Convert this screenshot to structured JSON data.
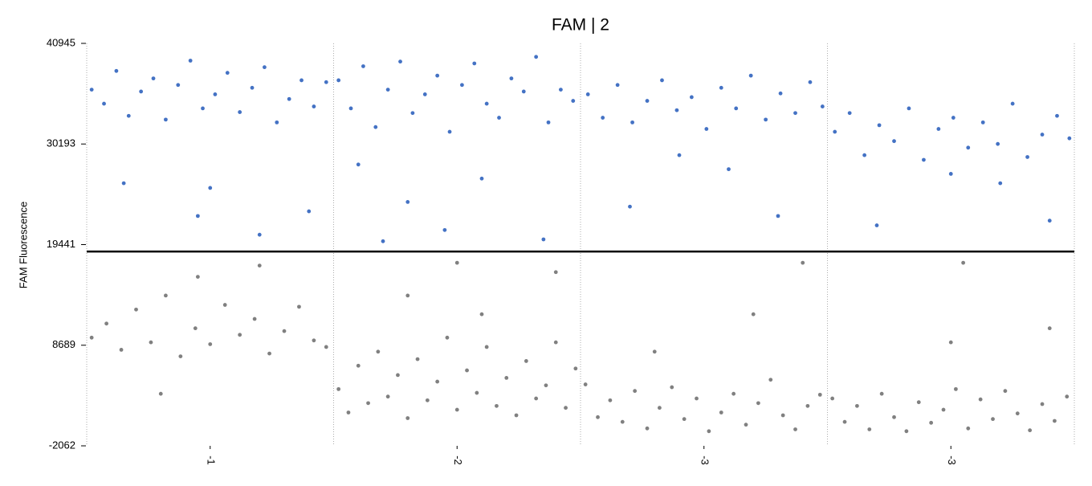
{
  "chart_data": {
    "type": "scatter",
    "title": "FAM | 2",
    "ylabel": "FAM Fluorescence",
    "xlim": [
      0,
      4
    ],
    "ylim": [
      -2062,
      40945
    ],
    "xticks": [
      {
        "value": 0.5,
        "label": "-1"
      },
      {
        "value": 1.5,
        "label": "-2"
      },
      {
        "value": 2.5,
        "label": "-3"
      },
      {
        "value": 3.5,
        "label": "-3"
      }
    ],
    "yticks": [
      -2062,
      8689,
      19441,
      30193,
      40945
    ],
    "threshold": 18700,
    "series": [
      {
        "color": "#4472c4",
        "x": [
          0.02,
          0.07,
          0.12,
          0.17,
          0.22,
          0.27,
          0.32,
          0.37,
          0.42,
          0.47,
          0.52,
          0.57,
          0.62,
          0.67,
          0.72,
          0.77,
          0.82,
          0.87,
          0.92,
          0.97,
          0.15,
          0.5,
          0.7,
          0.45,
          0.9,
          1.02,
          1.07,
          1.12,
          1.17,
          1.22,
          1.27,
          1.32,
          1.37,
          1.42,
          1.47,
          1.52,
          1.57,
          1.62,
          1.67,
          1.72,
          1.77,
          1.82,
          1.87,
          1.92,
          1.97,
          1.1,
          1.3,
          1.45,
          1.6,
          1.85,
          1.2,
          2.03,
          2.09,
          2.15,
          2.21,
          2.27,
          2.33,
          2.39,
          2.45,
          2.51,
          2.57,
          2.63,
          2.69,
          2.75,
          2.81,
          2.87,
          2.93,
          2.98,
          2.4,
          2.6,
          2.8,
          2.2,
          3.03,
          3.09,
          3.15,
          3.21,
          3.27,
          3.33,
          3.39,
          3.45,
          3.51,
          3.57,
          3.63,
          3.69,
          3.75,
          3.81,
          3.87,
          3.93,
          3.98,
          3.5,
          3.7,
          3.2,
          3.9
        ],
        "values": [
          36000,
          34500,
          38000,
          33200,
          35800,
          37200,
          32800,
          36500,
          39100,
          34000,
          35500,
          37800,
          33600,
          36200,
          38400,
          32500,
          35000,
          37000,
          34200,
          36800,
          26000,
          25500,
          20500,
          22500,
          23000,
          37000,
          34000,
          38500,
          32000,
          36000,
          39000,
          33500,
          35500,
          37500,
          31500,
          36500,
          38800,
          34500,
          33000,
          37200,
          35800,
          39500,
          32500,
          36000,
          34800,
          28000,
          24000,
          21000,
          26500,
          20000,
          19800,
          35500,
          33000,
          36500,
          32500,
          34800,
          37000,
          33800,
          35200,
          31800,
          36200,
          34000,
          37500,
          32800,
          35600,
          33500,
          36800,
          34200,
          29000,
          27500,
          22500,
          23500,
          31500,
          33500,
          29000,
          32200,
          30500,
          34000,
          28500,
          31800,
          33000,
          29800,
          32500,
          30200,
          34500,
          28800,
          31200,
          33200,
          30800,
          27000,
          26000,
          21500,
          22000
        ]
      },
      {
        "color": "#808080",
        "x": [
          0.02,
          0.08,
          0.14,
          0.2,
          0.26,
          0.32,
          0.38,
          0.44,
          0.5,
          0.56,
          0.62,
          0.68,
          0.74,
          0.8,
          0.86,
          0.92,
          0.97,
          0.45,
          0.7,
          0.3,
          1.02,
          1.06,
          1.1,
          1.14,
          1.18,
          1.22,
          1.26,
          1.3,
          1.34,
          1.38,
          1.42,
          1.46,
          1.5,
          1.54,
          1.58,
          1.62,
          1.66,
          1.7,
          1.74,
          1.78,
          1.82,
          1.86,
          1.9,
          1.94,
          1.98,
          1.3,
          1.6,
          1.9,
          1.5,
          2.02,
          2.07,
          2.12,
          2.17,
          2.22,
          2.27,
          2.32,
          2.37,
          2.42,
          2.47,
          2.52,
          2.57,
          2.62,
          2.67,
          2.72,
          2.77,
          2.82,
          2.87,
          2.92,
          2.97,
          2.3,
          2.7,
          2.9,
          3.02,
          3.07,
          3.12,
          3.17,
          3.22,
          3.27,
          3.32,
          3.37,
          3.42,
          3.47,
          3.52,
          3.57,
          3.62,
          3.67,
          3.72,
          3.77,
          3.82,
          3.87,
          3.92,
          3.97,
          3.5,
          3.9,
          3.55
        ],
        "values": [
          9500,
          11000,
          8200,
          12500,
          9000,
          14000,
          7500,
          10500,
          8800,
          13000,
          9800,
          11500,
          7800,
          10200,
          12800,
          9200,
          8500,
          16000,
          17200,
          3500,
          4000,
          1500,
          6500,
          2500,
          8000,
          3200,
          5500,
          900,
          7200,
          2800,
          4800,
          9500,
          1800,
          6000,
          3600,
          8500,
          2200,
          5200,
          1200,
          7000,
          3000,
          4400,
          9000,
          2000,
          6200,
          14000,
          12000,
          16500,
          17500,
          4500,
          1000,
          2800,
          500,
          3800,
          -200,
          2000,
          4200,
          800,
          3000,
          -500,
          1500,
          3500,
          200,
          2500,
          5000,
          1200,
          -300,
          2200,
          3400,
          8000,
          12000,
          17500,
          3000,
          500,
          2200,
          -300,
          3500,
          1000,
          -500,
          2600,
          400,
          1800,
          4000,
          -200,
          2900,
          800,
          3800,
          1400,
          -400,
          2400,
          600,
          3200,
          9000,
          10500,
          17500
        ]
      }
    ]
  }
}
